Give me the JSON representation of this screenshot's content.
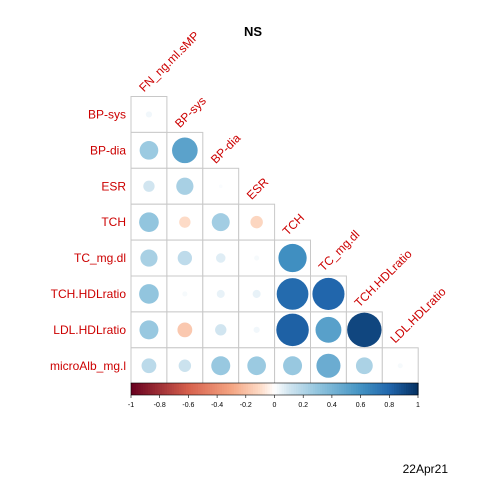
{
  "chart_data": {
    "type": "heatmap",
    "title": "NS",
    "variables": [
      "FN_ng.ml.sMP",
      "BP-sys",
      "BP-dia",
      "ESR",
      "TCH",
      "TC_mg.dl",
      "TCH.HDLratio",
      "LDL.HDLratio"
    ],
    "row_labels": [
      "BP-sys",
      "BP-dia",
      "ESR",
      "TCH",
      "TC_mg.dl",
      "TCH.HDLratio",
      "LDL.HDLratio",
      "microAlb_mg.l"
    ],
    "col_labels": [
      "FN_ng.ml.sMP",
      "BP-sys",
      "BP-dia",
      "ESR",
      "TCH",
      "TC_mg.dl",
      "TCH.HDLratio",
      "LDL.HDLratio"
    ],
    "matrix": [
      [
        0.03
      ],
      [
        0.27,
        0.51
      ],
      [
        0.1,
        0.23,
        0.01
      ],
      [
        0.3,
        -0.1,
        0.25,
        -0.12
      ],
      [
        0.23,
        0.16,
        0.07,
        0.02,
        0.62
      ],
      [
        0.3,
        0.02,
        0.05,
        0.05,
        0.78,
        0.8
      ],
      [
        0.28,
        -0.17,
        0.1,
        0.03,
        0.82,
        0.52,
        0.92
      ],
      [
        0.17,
        0.12,
        0.28,
        0.27,
        0.28,
        0.45,
        0.22,
        0.02
      ]
    ],
    "color_scale": {
      "min": -1,
      "max": 1,
      "low": "#67001F",
      "mid": "#FFFFFF",
      "high": "#053061"
    },
    "colorbar_ticks": [
      "-1",
      "-0.8",
      "-0.6",
      "-0.4",
      "-0.2",
      "0",
      "0.2",
      "0.4",
      "0.6",
      "0.8",
      "1"
    ],
    "label_color": "#CC0000"
  },
  "footer": {
    "date": "22Apr21"
  }
}
